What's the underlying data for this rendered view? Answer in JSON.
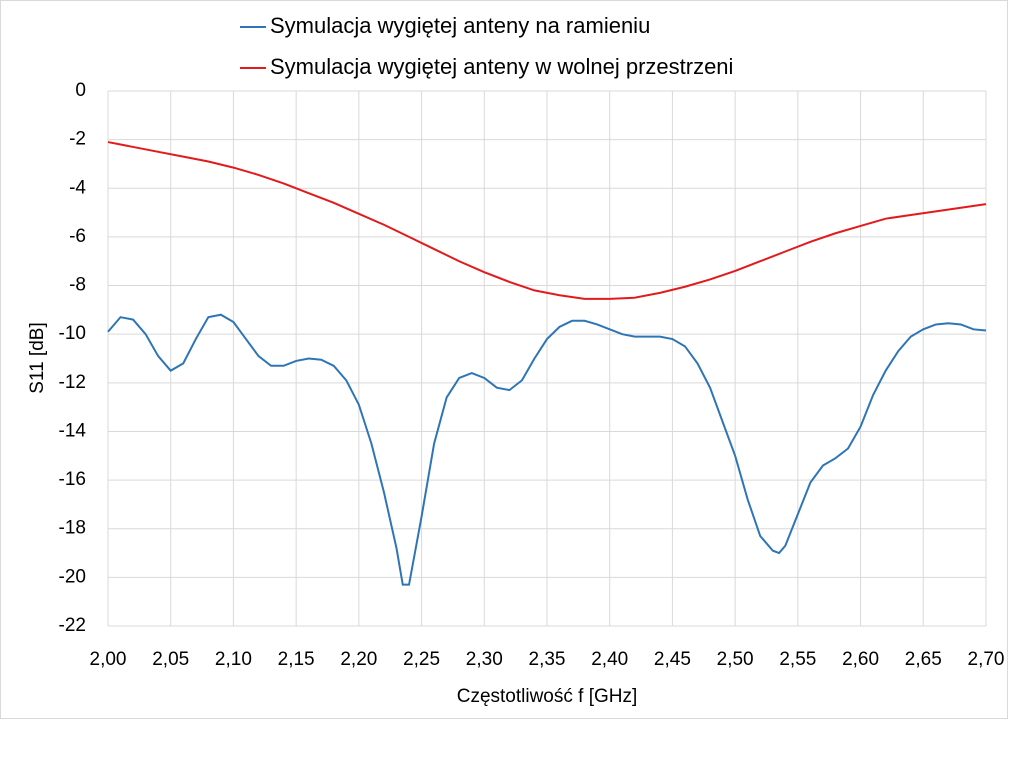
{
  "chart_data": {
    "type": "line",
    "xlabel": "Częstotliwość f [GHz]",
    "ylabel": "S11 [dB]",
    "xlim": [
      2.0,
      2.7
    ],
    "ylim": [
      -22,
      0
    ],
    "grid": true,
    "legend": "top",
    "xticks": [
      {
        "value": 2.0,
        "label": "2,00"
      },
      {
        "value": 2.05,
        "label": "2,05"
      },
      {
        "value": 2.1,
        "label": "2,10"
      },
      {
        "value": 2.15,
        "label": "2,15"
      },
      {
        "value": 2.2,
        "label": "2,20"
      },
      {
        "value": 2.25,
        "label": "2,25"
      },
      {
        "value": 2.3,
        "label": "2,30"
      },
      {
        "value": 2.35,
        "label": "2,35"
      },
      {
        "value": 2.4,
        "label": "2,40"
      },
      {
        "value": 2.45,
        "label": "2,45"
      },
      {
        "value": 2.5,
        "label": "2,50"
      },
      {
        "value": 2.55,
        "label": "2,55"
      },
      {
        "value": 2.6,
        "label": "2,60"
      },
      {
        "value": 2.65,
        "label": "2,65"
      },
      {
        "value": 2.7,
        "label": "2,70"
      }
    ],
    "yticks": [
      0,
      -2,
      -4,
      -6,
      -8,
      -10,
      -12,
      -14,
      -16,
      -18,
      -20,
      -22
    ],
    "series": [
      {
        "name": "Symulacja wygiętej anteny na ramieniu",
        "color": "#2e75b6",
        "x": [
          2.0,
          2.01,
          2.02,
          2.03,
          2.04,
          2.05,
          2.06,
          2.07,
          2.08,
          2.09,
          2.1,
          2.11,
          2.12,
          2.13,
          2.14,
          2.15,
          2.16,
          2.17,
          2.18,
          2.19,
          2.2,
          2.21,
          2.22,
          2.23,
          2.235,
          2.24,
          2.25,
          2.26,
          2.27,
          2.28,
          2.29,
          2.3,
          2.31,
          2.32,
          2.33,
          2.34,
          2.35,
          2.36,
          2.37,
          2.38,
          2.39,
          2.4,
          2.41,
          2.42,
          2.43,
          2.44,
          2.45,
          2.46,
          2.47,
          2.48,
          2.49,
          2.5,
          2.51,
          2.52,
          2.53,
          2.535,
          2.54,
          2.55,
          2.56,
          2.57,
          2.58,
          2.59,
          2.6,
          2.61,
          2.62,
          2.63,
          2.64,
          2.65,
          2.66,
          2.67,
          2.68,
          2.69,
          2.7
        ],
        "values": [
          -9.9,
          -9.3,
          -9.4,
          -10.0,
          -10.9,
          -11.5,
          -11.2,
          -10.2,
          -9.3,
          -9.2,
          -9.5,
          -10.2,
          -10.9,
          -11.3,
          -11.3,
          -11.1,
          -11.0,
          -11.05,
          -11.3,
          -11.9,
          -12.9,
          -14.5,
          -16.5,
          -18.8,
          -20.3,
          -20.3,
          -17.5,
          -14.5,
          -12.6,
          -11.8,
          -11.6,
          -11.8,
          -12.2,
          -12.3,
          -11.9,
          -11.0,
          -10.2,
          -9.7,
          -9.45,
          -9.45,
          -9.6,
          -9.8,
          -10.0,
          -10.1,
          -10.1,
          -10.1,
          -10.2,
          -10.5,
          -11.2,
          -12.2,
          -13.6,
          -15.0,
          -16.8,
          -18.3,
          -18.9,
          -19.0,
          -18.7,
          -17.4,
          -16.1,
          -15.4,
          -15.1,
          -14.7,
          -13.8,
          -12.5,
          -11.5,
          -10.7,
          -10.1,
          -9.8,
          -9.6,
          -9.55,
          -9.6,
          -9.8,
          -9.85
        ]
      },
      {
        "name": "Symulacja wygiętej anteny w wolnej przestrzeni",
        "color": "#e31a1c",
        "x": [
          2.0,
          2.02,
          2.04,
          2.06,
          2.08,
          2.1,
          2.12,
          2.14,
          2.16,
          2.18,
          2.2,
          2.22,
          2.24,
          2.26,
          2.28,
          2.3,
          2.32,
          2.34,
          2.36,
          2.38,
          2.4,
          2.42,
          2.44,
          2.46,
          2.48,
          2.5,
          2.52,
          2.54,
          2.56,
          2.58,
          2.6,
          2.62,
          2.64,
          2.66,
          2.68,
          2.7
        ],
        "values": [
          -2.1,
          -2.3,
          -2.5,
          -2.7,
          -2.9,
          -3.15,
          -3.45,
          -3.8,
          -4.2,
          -4.6,
          -5.05,
          -5.5,
          -6.0,
          -6.5,
          -7.0,
          -7.45,
          -7.85,
          -8.2,
          -8.4,
          -8.55,
          -8.55,
          -8.5,
          -8.3,
          -8.05,
          -7.75,
          -7.4,
          -7.0,
          -6.6,
          -6.2,
          -5.85,
          -5.55,
          -5.25,
          -5.1,
          -4.95,
          -4.8,
          -4.65
        ]
      }
    ]
  }
}
